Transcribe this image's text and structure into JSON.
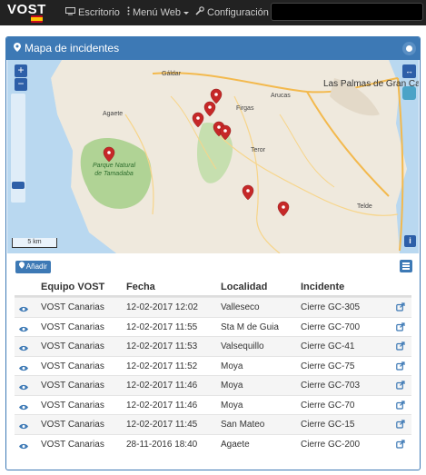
{
  "navbar": {
    "brand": "VOST",
    "items": [
      {
        "label": "Escritorio",
        "icon": "monitor-icon"
      },
      {
        "label": "Menú Web",
        "icon": "dots-vertical-icon",
        "dropdown": true
      },
      {
        "label": "Configuración",
        "icon": "wrench-icon",
        "dropdown": true
      }
    ]
  },
  "panel": {
    "title": "Mapa de incidentes"
  },
  "map": {
    "labels": [
      "Gáldar",
      "Las Palmas de Gran Canaria",
      "Agaete",
      "Firgas",
      "Arucas",
      "Teror",
      "Telde",
      "Parque Natural de Tamadaba"
    ],
    "scale": "5 km",
    "marker_color": "#c62828"
  },
  "toolbar": {
    "add_label": "Añadir"
  },
  "table": {
    "headers": [
      "Equipo VOST",
      "Fecha",
      "Localidad",
      "Incidente"
    ],
    "rows": [
      {
        "team": "VOST Canarias",
        "date": "12-02-2017 12:02",
        "place": "Valleseco",
        "incident": "Cierre GC-305"
      },
      {
        "team": "VOST Canarias",
        "date": "12-02-2017 11:55",
        "place": "Sta M de Guia",
        "incident": "Cierre GC-700"
      },
      {
        "team": "VOST Canarias",
        "date": "12-02-2017 11:53",
        "place": "Valsequillo",
        "incident": "Cierre GC-41"
      },
      {
        "team": "VOST Canarias",
        "date": "12-02-2017 11:52",
        "place": "Moya",
        "incident": "Cierre GC-75"
      },
      {
        "team": "VOST Canarias",
        "date": "12-02-2017 11:46",
        "place": "Moya",
        "incident": "Cierre GC-703"
      },
      {
        "team": "VOST Canarias",
        "date": "12-02-2017 11:46",
        "place": "Moya",
        "incident": "Cierre GC-70"
      },
      {
        "team": "VOST Canarias",
        "date": "12-02-2017 11:45",
        "place": "San Mateo",
        "incident": "Cierre GC-15"
      },
      {
        "team": "VOST Canarias",
        "date": "28-11-2016 18:40",
        "place": "Agaete",
        "incident": "Cierre GC-200"
      }
    ]
  },
  "colors": {
    "navbar": "#222222",
    "primary": "#3d79b5",
    "link_icon": "#3d79b5"
  }
}
